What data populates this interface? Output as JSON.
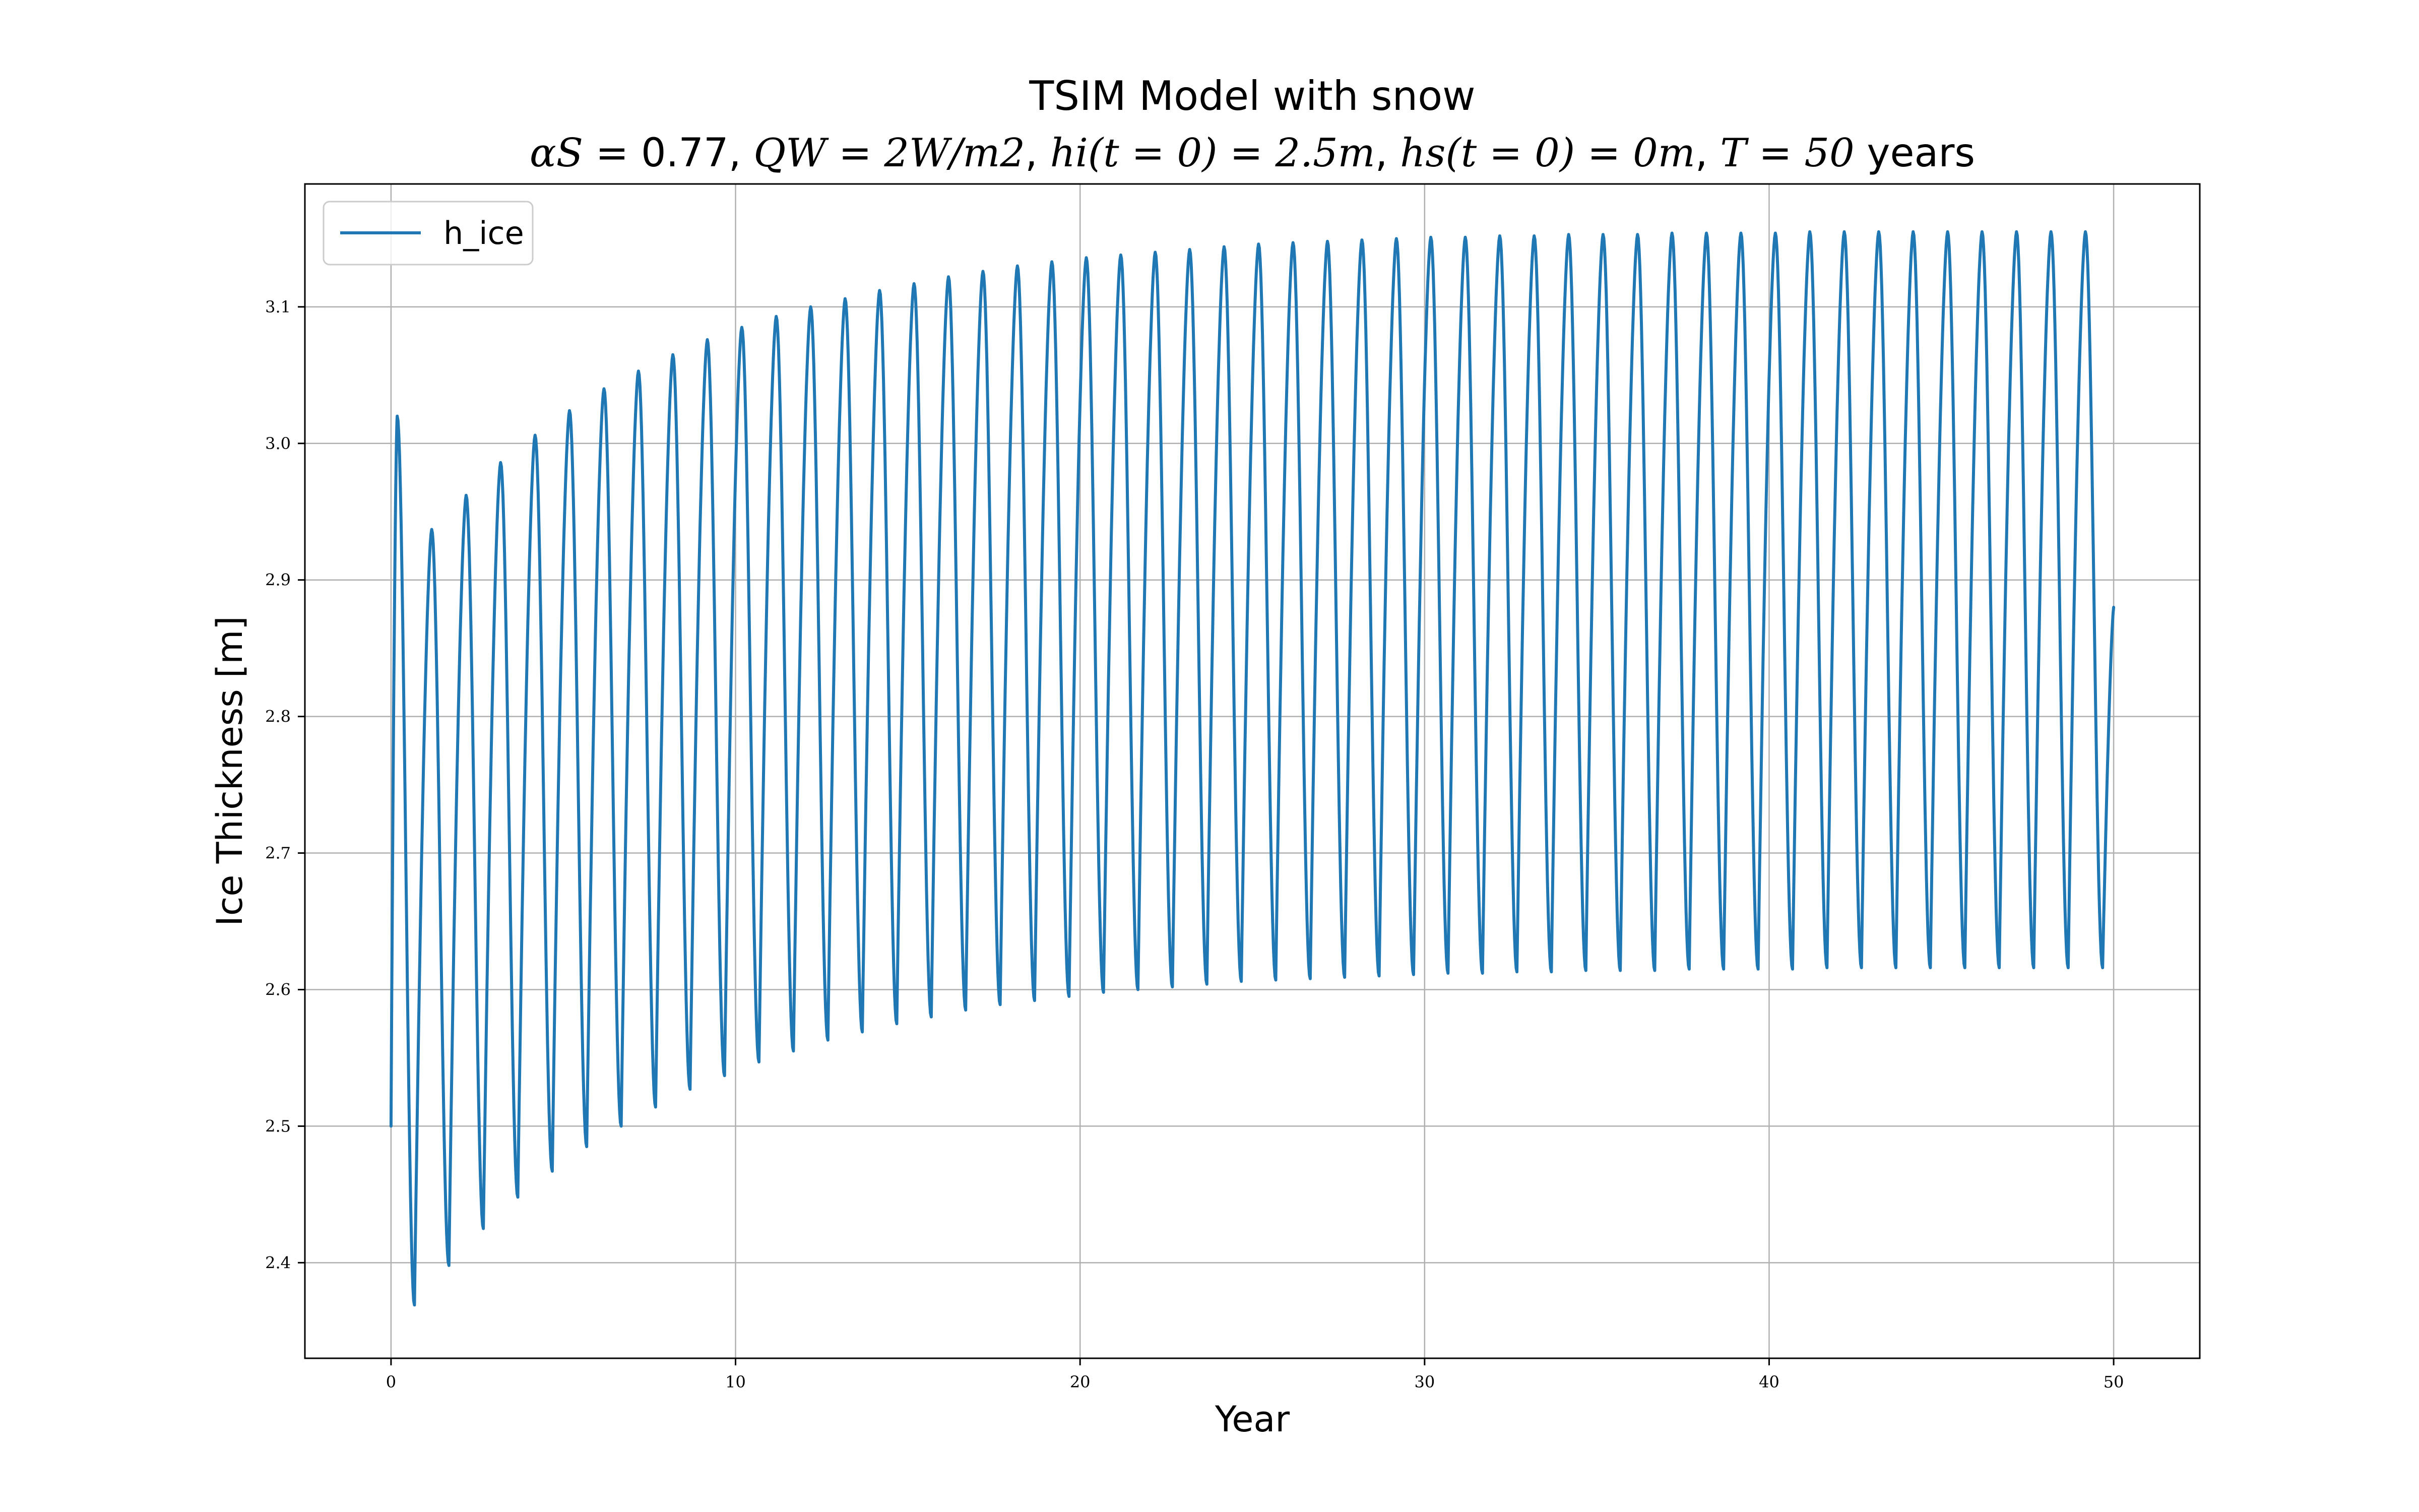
{
  "chart_data": {
    "type": "line",
    "title": "TSIM Model with snow",
    "subtitle": {
      "alpha_lhs": "αS",
      "alpha_value": "0.77",
      "qw_lhs": "QW",
      "qw_rhs": "2W/m2",
      "hi_lhs": "hi(t = 0)",
      "hi_rhs": "2.5m",
      "hs_lhs": "hs(t = 0)",
      "hs_rhs": "0m",
      "t_lhs": "T",
      "t_value": "50",
      "years_word": "years"
    },
    "xlabel": "Year",
    "ylabel": "Ice Thickness [m]",
    "xlim": [
      -2.5,
      52.5
    ],
    "ylim": [
      2.33,
      3.19
    ],
    "x_ticks": [
      "0",
      "10",
      "20",
      "30",
      "40",
      "50"
    ],
    "y_ticks": [
      "2.4",
      "2.5",
      "2.6",
      "2.7",
      "2.8",
      "2.9",
      "3.0",
      "3.1"
    ],
    "grid": true,
    "legend_position": "upper-left",
    "series": [
      {
        "name": "h_ice",
        "color": "#1f77b4",
        "start_value": 2.5,
        "end_value": 2.88,
        "cycle_count": 50,
        "annual_maxima": [
          3.02,
          2.937,
          2.962,
          2.986,
          3.006,
          3.024,
          3.04,
          3.053,
          3.065,
          3.076,
          3.085,
          3.093,
          3.1,
          3.106,
          3.112,
          3.117,
          3.122,
          3.126,
          3.13,
          3.133,
          3.136,
          3.138,
          3.14,
          3.142,
          3.144,
          3.146,
          3.147,
          3.148,
          3.149,
          3.15,
          3.151,
          3.151,
          3.152,
          3.152,
          3.153,
          3.153,
          3.153,
          3.154,
          3.154,
          3.154,
          3.154,
          3.155,
          3.155,
          3.155,
          3.155,
          3.155,
          3.155,
          3.155,
          3.155,
          3.155
        ],
        "annual_minima": [
          2.369,
          2.398,
          2.425,
          2.448,
          2.467,
          2.485,
          2.5,
          2.514,
          2.527,
          2.537,
          2.547,
          2.555,
          2.563,
          2.569,
          2.575,
          2.58,
          2.585,
          2.589,
          2.592,
          2.595,
          2.598,
          2.6,
          2.602,
          2.604,
          2.606,
          2.607,
          2.608,
          2.609,
          2.61,
          2.611,
          2.612,
          2.612,
          2.613,
          2.613,
          2.614,
          2.614,
          2.614,
          2.615,
          2.615,
          2.615,
          2.615,
          2.616,
          2.616,
          2.616,
          2.616,
          2.616,
          2.616,
          2.616,
          2.616,
          2.616
        ]
      }
    ]
  }
}
